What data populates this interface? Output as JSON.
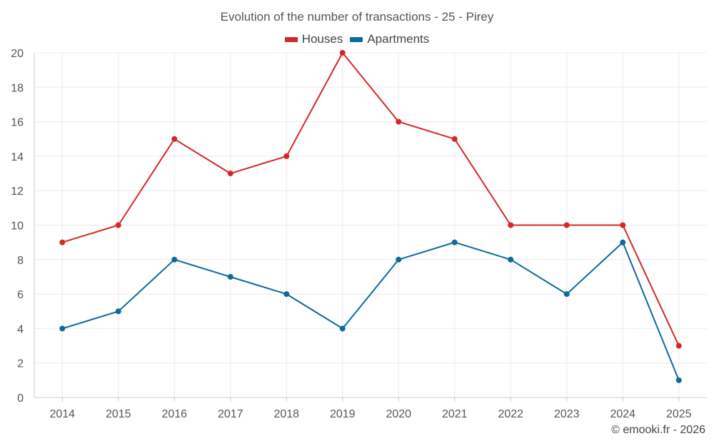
{
  "chart_data": {
    "type": "line",
    "title": "Evolution of the number of transactions - 25 - Pirey",
    "categories": [
      "2014",
      "2015",
      "2016",
      "2017",
      "2018",
      "2019",
      "2020",
      "2021",
      "2022",
      "2023",
      "2024",
      "2025"
    ],
    "series": [
      {
        "name": "Houses",
        "color": "#d62728",
        "values": [
          9,
          10,
          15,
          13,
          14,
          20,
          16,
          15,
          10,
          10,
          10,
          3
        ]
      },
      {
        "name": "Apartments",
        "color": "#0b6a9e",
        "values": [
          4,
          5,
          8,
          7,
          6,
          4,
          8,
          9,
          8,
          6,
          9,
          1
        ]
      }
    ],
    "ylim": [
      0,
      20
    ],
    "yticks": [
      0,
      2,
      4,
      6,
      8,
      10,
      12,
      14,
      16,
      18,
      20
    ],
    "xlabel": "",
    "ylabel": "",
    "grid": true,
    "legend": "top-center"
  },
  "credit": "© emooki.fr - 2026"
}
